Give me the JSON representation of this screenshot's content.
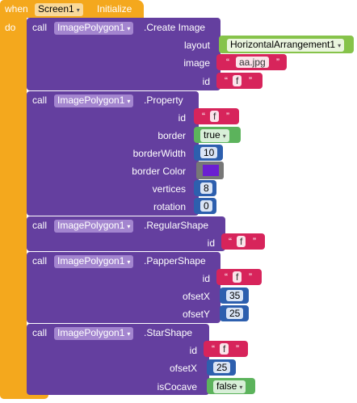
{
  "event": {
    "when_label": "when",
    "component": "Screen1",
    "event_name": "Initialize",
    "do_label": "do"
  },
  "blocks": [
    {
      "call_label": "call",
      "component": "ImagePolygon1",
      "method": ".Create Image",
      "params": [
        {
          "label": "layout",
          "kind": "component",
          "value": "HorizontalArrangement1"
        },
        {
          "label": "image",
          "kind": "text",
          "value": "aa.jpg"
        },
        {
          "label": "id",
          "kind": "text",
          "value": "f"
        }
      ]
    },
    {
      "call_label": "call",
      "component": "ImagePolygon1",
      "method": ".Property",
      "params": [
        {
          "label": "id",
          "kind": "text",
          "value": "f"
        },
        {
          "label": "border",
          "kind": "boolean",
          "value": "true"
        },
        {
          "label": "borderWidth",
          "kind": "number",
          "value": "10"
        },
        {
          "label": "border Color",
          "kind": "color",
          "value": "#6b1fd1"
        },
        {
          "label": "vertices",
          "kind": "number",
          "value": "8"
        },
        {
          "label": "rotation",
          "kind": "number",
          "value": "0"
        }
      ]
    },
    {
      "call_label": "call",
      "component": "ImagePolygon1",
      "method": ".RegularShape",
      "params": [
        {
          "label": "id",
          "kind": "text",
          "value": "f"
        }
      ]
    },
    {
      "call_label": "call",
      "component": "ImagePolygon1",
      "method": ".PapperShape",
      "params": [
        {
          "label": "id",
          "kind": "text",
          "value": "f"
        },
        {
          "label": "ofsetX",
          "kind": "number",
          "value": "35"
        },
        {
          "label": "ofsetY",
          "kind": "number",
          "value": "25"
        }
      ]
    },
    {
      "call_label": "call",
      "component": "ImagePolygon1",
      "method": ".StarShape",
      "params": [
        {
          "label": "id",
          "kind": "text",
          "value": "f"
        },
        {
          "label": "ofsetX",
          "kind": "number",
          "value": "25"
        },
        {
          "label": "isCocave",
          "kind": "boolean",
          "value": "false"
        }
      ]
    }
  ],
  "quote_open": "“",
  "quote_close": "”",
  "dropdown_arrow": "▾",
  "colors": {
    "event": "#f4a81d",
    "call": "#643f9f",
    "text": "#d7245b",
    "number": "#2d5fae",
    "boolean": "#5cb35c",
    "component": "#86c34a"
  }
}
